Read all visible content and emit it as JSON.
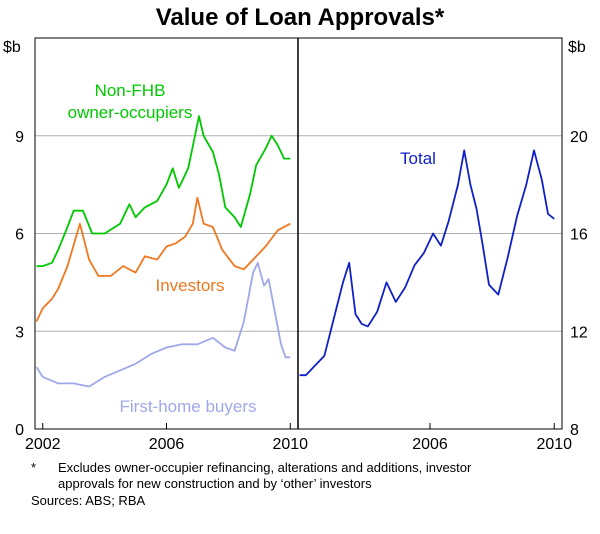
{
  "chart_data": {
    "type": "line",
    "title": "Value of Loan Approvals*",
    "panels": [
      {
        "name": "left",
        "ylabel": "$b",
        "ylim": [
          0,
          12
        ],
        "yticks": [
          0,
          3,
          6,
          9
        ],
        "xlim": [
          2001.75,
          2010.25
        ],
        "xticks": [
          "2002",
          "2006",
          "2010"
        ],
        "xtick_values": [
          2002,
          2006,
          2010
        ],
        "series": [
          {
            "name": "Non-FHB owner-occupiers",
            "label_lines": [
              "Non-FHB",
              "owner-occupiers"
            ],
            "color": "#00c800",
            "points": [
              [
                2001.8,
                5.0
              ],
              [
                2002.0,
                5.0
              ],
              [
                2002.3,
                5.1
              ],
              [
                2002.5,
                5.5
              ],
              [
                2002.8,
                6.2
              ],
              [
                2003.0,
                6.7
              ],
              [
                2003.3,
                6.7
              ],
              [
                2003.6,
                6.0
              ],
              [
                2004.0,
                6.0
              ],
              [
                2004.5,
                6.3
              ],
              [
                2004.8,
                6.9
              ],
              [
                2005.0,
                6.5
              ],
              [
                2005.3,
                6.8
              ],
              [
                2005.7,
                7.0
              ],
              [
                2006.0,
                7.5
              ],
              [
                2006.2,
                8.0
              ],
              [
                2006.4,
                7.4
              ],
              [
                2006.7,
                8.0
              ],
              [
                2006.9,
                8.9
              ],
              [
                2007.05,
                9.6
              ],
              [
                2007.2,
                9.0
              ],
              [
                2007.5,
                8.5
              ],
              [
                2007.7,
                7.8
              ],
              [
                2007.9,
                6.8
              ],
              [
                2008.2,
                6.5
              ],
              [
                2008.4,
                6.2
              ],
              [
                2008.7,
                7.2
              ],
              [
                2008.9,
                8.1
              ],
              [
                2009.2,
                8.6
              ],
              [
                2009.4,
                9.0
              ],
              [
                2009.6,
                8.7
              ],
              [
                2009.8,
                8.3
              ],
              [
                2010.0,
                8.3
              ]
            ]
          },
          {
            "name": "Investors",
            "label_lines": [
              "Investors"
            ],
            "color": "#f07820",
            "points": [
              [
                2001.8,
                3.3
              ],
              [
                2002.0,
                3.7
              ],
              [
                2002.3,
                4.0
              ],
              [
                2002.5,
                4.3
              ],
              [
                2002.8,
                5.0
              ],
              [
                2003.2,
                6.3
              ],
              [
                2003.5,
                5.2
              ],
              [
                2003.8,
                4.7
              ],
              [
                2004.2,
                4.7
              ],
              [
                2004.6,
                5.0
              ],
              [
                2005.0,
                4.8
              ],
              [
                2005.3,
                5.3
              ],
              [
                2005.7,
                5.2
              ],
              [
                2006.0,
                5.6
              ],
              [
                2006.3,
                5.7
              ],
              [
                2006.6,
                5.9
              ],
              [
                2006.85,
                6.3
              ],
              [
                2007.0,
                7.1
              ],
              [
                2007.2,
                6.3
              ],
              [
                2007.5,
                6.2
              ],
              [
                2007.8,
                5.5
              ],
              [
                2008.2,
                5.0
              ],
              [
                2008.5,
                4.9
              ],
              [
                2008.8,
                5.2
              ],
              [
                2009.2,
                5.6
              ],
              [
                2009.6,
                6.1
              ],
              [
                2010.0,
                6.3
              ]
            ]
          },
          {
            "name": "First-home buyers",
            "label_lines": [
              "First-home buyers"
            ],
            "color": "#a0a8e8",
            "points": [
              [
                2001.8,
                1.9
              ],
              [
                2002.0,
                1.6
              ],
              [
                2002.5,
                1.4
              ],
              [
                2003.0,
                1.4
              ],
              [
                2003.5,
                1.3
              ],
              [
                2004.0,
                1.6
              ],
              [
                2004.5,
                1.8
              ],
              [
                2005.0,
                2.0
              ],
              [
                2005.5,
                2.3
              ],
              [
                2006.0,
                2.5
              ],
              [
                2006.5,
                2.6
              ],
              [
                2007.0,
                2.6
              ],
              [
                2007.5,
                2.8
              ],
              [
                2007.9,
                2.5
              ],
              [
                2008.2,
                2.4
              ],
              [
                2008.5,
                3.3
              ],
              [
                2008.8,
                4.8
              ],
              [
                2008.95,
                5.1
              ],
              [
                2009.15,
                4.4
              ],
              [
                2009.3,
                4.6
              ],
              [
                2009.5,
                3.6
              ],
              [
                2009.7,
                2.6
              ],
              [
                2009.85,
                2.2
              ],
              [
                2010.0,
                2.2
              ]
            ]
          }
        ]
      },
      {
        "name": "right",
        "ylabel": "$b",
        "ylim": [
          8,
          24
        ],
        "yticks": [
          8,
          12,
          16,
          20
        ],
        "xlim": [
          2001.75,
          2010.25
        ],
        "xticks": [
          "2006",
          "2010"
        ],
        "xtick_values": [
          2006,
          2010
        ],
        "series": [
          {
            "name": "Total",
            "label_lines": [
              "Total"
            ],
            "color": "#1020c8",
            "points": [
              [
                2001.8,
                10.2
              ],
              [
                2002.0,
                10.2
              ],
              [
                2002.3,
                10.6
              ],
              [
                2002.6,
                11.0
              ],
              [
                2002.9,
                12.5
              ],
              [
                2003.2,
                14.0
              ],
              [
                2003.4,
                14.8
              ],
              [
                2003.6,
                12.7
              ],
              [
                2003.8,
                12.3
              ],
              [
                2004.0,
                12.2
              ],
              [
                2004.3,
                12.8
              ],
              [
                2004.6,
                14.0
              ],
              [
                2004.9,
                13.2
              ],
              [
                2005.2,
                13.8
              ],
              [
                2005.5,
                14.7
              ],
              [
                2005.8,
                15.2
              ],
              [
                2006.1,
                16.0
              ],
              [
                2006.35,
                15.5
              ],
              [
                2006.6,
                16.5
              ],
              [
                2006.9,
                18.0
              ],
              [
                2007.1,
                19.4
              ],
              [
                2007.3,
                18.0
              ],
              [
                2007.5,
                17.0
              ],
              [
                2007.7,
                15.5
              ],
              [
                2007.9,
                13.9
              ],
              [
                2008.2,
                13.5
              ],
              [
                2008.5,
                15.0
              ],
              [
                2008.8,
                16.7
              ],
              [
                2009.1,
                18.0
              ],
              [
                2009.35,
                19.4
              ],
              [
                2009.6,
                18.2
              ],
              [
                2009.8,
                16.8
              ],
              [
                2010.0,
                16.6
              ]
            ]
          }
        ]
      }
    ]
  },
  "footnote": {
    "marker": "*",
    "lines": [
      "Excludes owner-occupier refinancing, alterations and additions, investor",
      "approvals for new construction and by ‘other’ investors"
    ],
    "sources": "Sources: ABS; RBA"
  }
}
